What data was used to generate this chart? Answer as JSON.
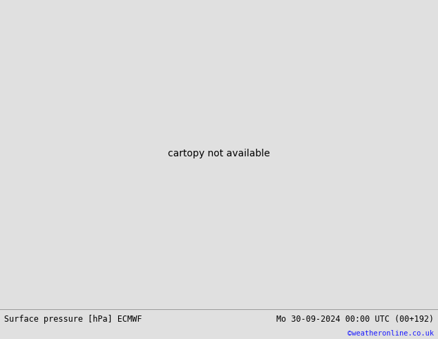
{
  "title_left": "Surface pressure [hPa] ECMWF",
  "title_right": "Mo 30-09-2024 00:00 UTC (00+192)",
  "credit": "©weatheronline.co.uk",
  "figsize": [
    6.34,
    4.9
  ],
  "dpi": 100,
  "bottom_bar_color": "#e0e0e0",
  "sea_color": "#c8d4e0",
  "land_color_green": "#c8e8b4",
  "land_color_gray": "#b4b4b4",
  "font_size_bottom": 8.5,
  "font_size_credit": 7.5,
  "credit_color": "#1a1aff",
  "isobar_blue": "#0000cc",
  "isobar_red": "#cc0000",
  "isobar_black": "#000000",
  "label_fontsize": 7,
  "label_fontsize_sm": 6.5
}
